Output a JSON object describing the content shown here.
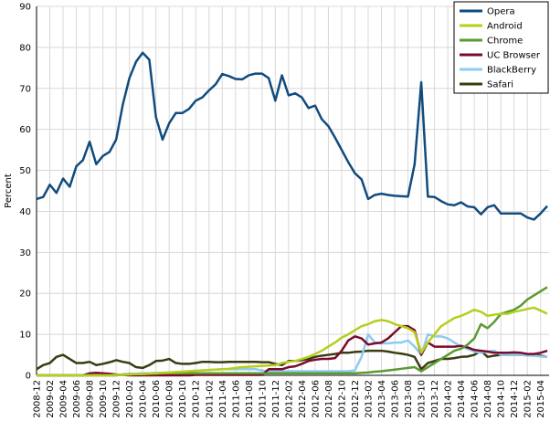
{
  "chart_data": {
    "type": "line",
    "y_label": "Percent",
    "categories": [
      "2008-12",
      null,
      "2009-02",
      null,
      "2009-04",
      null,
      "2009-06",
      null,
      "2009-08",
      null,
      "2009-10",
      null,
      "2009-12",
      null,
      "2010-02",
      null,
      "2010-04",
      null,
      "2010-06",
      null,
      "2010-08",
      null,
      "2010-10",
      null,
      "2010-12",
      null,
      "2011-02",
      null,
      "2011-04",
      null,
      "2011-06",
      null,
      "2011-08",
      null,
      "2011-10",
      null,
      "2011-12",
      null,
      "2012-02",
      null,
      "2012-04",
      null,
      "2012-06",
      null,
      "2012-08",
      null,
      "2012-10",
      null,
      "2012-12",
      null,
      "2013-02",
      null,
      "2013-04",
      null,
      "2013-06",
      null,
      "2013-08",
      null,
      "2013-10",
      null,
      "2013-12",
      null,
      "2014-02",
      null,
      "2014-04",
      null,
      "2014-06",
      null,
      "2014-08",
      null,
      "2014-10",
      null,
      "2014-12",
      null,
      "2015-02",
      null,
      "2015-04",
      null
    ],
    "ylim": [
      0,
      90
    ],
    "yticks": [
      0,
      10,
      20,
      30,
      40,
      50,
      60,
      70,
      80,
      90
    ],
    "grid": true,
    "legend": "upper right",
    "series": [
      {
        "name": "Opera",
        "color": "#124b7e",
        "values": [
          43,
          43.5,
          46.5,
          44.5,
          48,
          46,
          51,
          52.5,
          57,
          51.5,
          53.5,
          54.5,
          57.5,
          66,
          72.5,
          76.5,
          78.7,
          77,
          63,
          57.5,
          61.5,
          64,
          64,
          65,
          67,
          67.8,
          69.5,
          71,
          73.5,
          73,
          72.3,
          72.2,
          73.2,
          73.6,
          73.6,
          72.5,
          67,
          73.2,
          68.3,
          68.8,
          67.8,
          65.2,
          65.8,
          62.5,
          60.8,
          58,
          55,
          52,
          49.3,
          47.8,
          43,
          44,
          44.3,
          44,
          43.8,
          43.7,
          43.6,
          51.5,
          71.5,
          43.6,
          43.5,
          42.5,
          41.7,
          41.5,
          42.2,
          41.2,
          41,
          39.3,
          41,
          41.5,
          39.5,
          39.5,
          39.5,
          39.5,
          38.5,
          38,
          39.5,
          41.3
        ]
      },
      {
        "name": "Android",
        "color": "#b6cf1c",
        "values": [
          0,
          0,
          0,
          0,
          0,
          0,
          0,
          0,
          0,
          0,
          0,
          0,
          0.1,
          0.1,
          0.2,
          0.3,
          0.3,
          0.4,
          0.5,
          0.6,
          0.7,
          0.8,
          0.9,
          1.0,
          1.1,
          1.2,
          1.3,
          1.4,
          1.5,
          1.6,
          1.8,
          2.0,
          2.1,
          2.2,
          2.3,
          2.4,
          2.5,
          3.0,
          3.3,
          3.5,
          4.0,
          4.5,
          5.2,
          6.0,
          7.0,
          8.0,
          9.2,
          10.0,
          11.0,
          12.0,
          12.5,
          13.2,
          13.5,
          13.2,
          12.5,
          12.0,
          11.5,
          10.5,
          5.5,
          8.0,
          10.0,
          12.0,
          13.0,
          14.0,
          14.5,
          15.2,
          16.0,
          15.5,
          14.5,
          14.8,
          15.0,
          15.0,
          15.5,
          15.8,
          16.2,
          16.5,
          15.8,
          15.0
        ]
      },
      {
        "name": "Chrome",
        "color": "#5a9a30",
        "values": [
          0,
          0,
          0,
          0,
          0,
          0,
          0,
          0,
          0,
          0,
          0,
          0,
          0,
          0.2,
          0.3,
          0.3,
          0.3,
          0.4,
          0.4,
          0.5,
          0.5,
          0.5,
          0.5,
          0.5,
          0.5,
          0.5,
          0.5,
          0.5,
          0.5,
          0.5,
          0.5,
          0.5,
          0.5,
          0.5,
          0.5,
          0.5,
          0.5,
          0.5,
          0.5,
          0.5,
          0.5,
          0.5,
          0.5,
          0.5,
          0.5,
          0.5,
          0.5,
          0.5,
          0.5,
          0.6,
          0.7,
          0.9,
          1.0,
          1.2,
          1.4,
          1.6,
          1.8,
          2.0,
          1.0,
          2.0,
          3.0,
          4.0,
          5.0,
          6.0,
          6.5,
          7.5,
          9.0,
          12.5,
          11.5,
          13.0,
          15.0,
          15.5,
          16.0,
          17.0,
          18.5,
          19.5,
          20.5,
          21.5
        ]
      },
      {
        "name": "UC Browser",
        "color": "#7a0b2c",
        "values": [
          0,
          0,
          0,
          0,
          0,
          0,
          0,
          0,
          0.5,
          0.6,
          0.5,
          0.4,
          0.2,
          0.1,
          0,
          0,
          0,
          0,
          0,
          0,
          0,
          0,
          0,
          0,
          0.1,
          0.1,
          0.1,
          0.1,
          0.1,
          0.1,
          0.1,
          0.1,
          0.1,
          0.1,
          0.1,
          1.5,
          1.5,
          1.5,
          2.0,
          2.2,
          2.8,
          3.5,
          3.8,
          4.0,
          4.0,
          4.2,
          6.0,
          8.5,
          9.5,
          9.0,
          7.5,
          7.8,
          8.0,
          9.0,
          10.5,
          12.0,
          12.0,
          11.0,
          5.0,
          8.0,
          7.0,
          7.0,
          7.0,
          7.0,
          7.2,
          6.8,
          6.2,
          6.0,
          5.8,
          5.5,
          5.5,
          5.5,
          5.6,
          5.5,
          5.2,
          5.2,
          5.5,
          6.0
        ]
      },
      {
        "name": "BlackBerry",
        "color": "#8ecbf0",
        "values": [
          0,
          0,
          0,
          0,
          0,
          0,
          0,
          0,
          0,
          0,
          0,
          0,
          0,
          0.2,
          0.3,
          0.4,
          0.5,
          0.5,
          0.6,
          0.6,
          0.7,
          0.8,
          0.9,
          1.0,
          1.1,
          1.2,
          1.3,
          1.4,
          1.5,
          1.5,
          1.5,
          1.5,
          1.5,
          1.5,
          1.2,
          1.0,
          1.0,
          1.0,
          1.0,
          1.0,
          1.0,
          1.0,
          1.0,
          1.0,
          1.0,
          1.0,
          1.0,
          1.0,
          1.2,
          4.5,
          10.0,
          8.0,
          7.8,
          7.8,
          8.0,
          8.0,
          8.5,
          7.0,
          5.0,
          10.0,
          9.5,
          9.5,
          9.0,
          8.0,
          7.0,
          6.5,
          5.8,
          5.5,
          5.8,
          6.0,
          5.0,
          5.0,
          5.0,
          5.0,
          4.8,
          4.8,
          4.6,
          4.5
        ]
      },
      {
        "name": "Safari",
        "color": "#3b3b12",
        "values": [
          1.5,
          2.5,
          3.0,
          4.5,
          5.0,
          4.0,
          3.0,
          3.0,
          3.3,
          2.5,
          2.8,
          3.2,
          3.7,
          3.3,
          3.0,
          2.0,
          1.8,
          2.5,
          3.5,
          3.6,
          4.0,
          3.0,
          2.8,
          2.8,
          3.0,
          3.3,
          3.3,
          3.2,
          3.2,
          3.3,
          3.3,
          3.3,
          3.3,
          3.3,
          3.2,
          3.2,
          2.8,
          2.5,
          3.5,
          3.5,
          3.7,
          4.0,
          4.5,
          4.8,
          5.0,
          5.2,
          5.5,
          5.5,
          5.7,
          5.8,
          6.0,
          6.0,
          6.0,
          5.8,
          5.5,
          5.3,
          5.0,
          4.5,
          1.5,
          3.0,
          3.5,
          4.0,
          4.0,
          4.2,
          4.5,
          4.6,
          5.0,
          6.0,
          4.5,
          4.8,
          5.0,
          5.0,
          5.0,
          5.0,
          5.0,
          5.0,
          4.8,
          4.5
        ]
      }
    ]
  }
}
